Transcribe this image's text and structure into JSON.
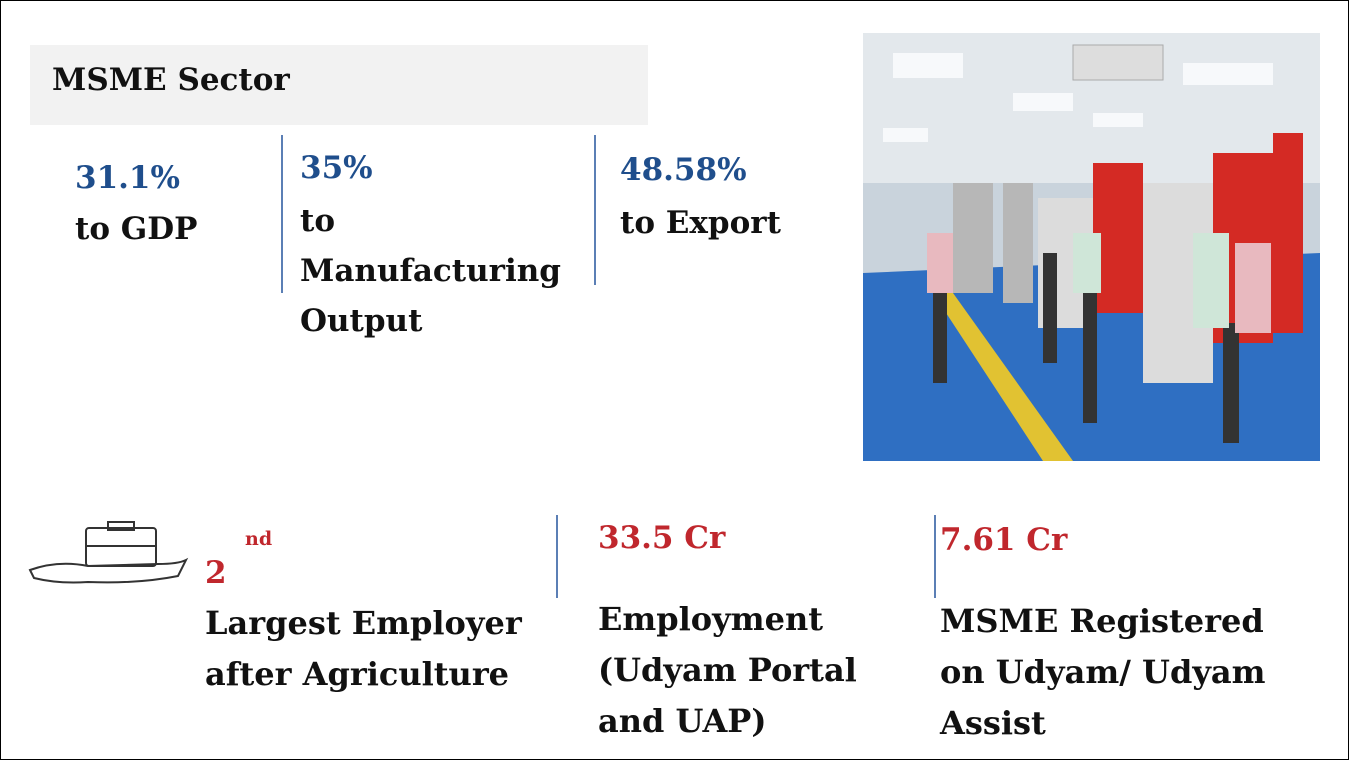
{
  "header": {
    "title": "MSME Sector"
  },
  "stats": [
    {
      "value": "31.1%",
      "label_lines": [
        "to GDP"
      ]
    },
    {
      "value": "35%",
      "label_lines": [
        "to",
        "Manufacturing",
        "Output"
      ]
    },
    {
      "value": "48.58%",
      "label_lines": [
        "to Export"
      ]
    }
  ],
  "highlights": [
    {
      "value": "2",
      "superscript": "nd",
      "label_lines": [
        "Largest Employer",
        "after Agriculture"
      ]
    },
    {
      "value": "33.5 Cr",
      "label_lines": [
        "Employment",
        "(Udyam Portal",
        "and UAP)"
      ]
    },
    {
      "value": "7.61 Cr",
      "label_lines": [
        "MSME Registered",
        "on Udyam/ Udyam",
        "Assist"
      ]
    }
  ]
}
